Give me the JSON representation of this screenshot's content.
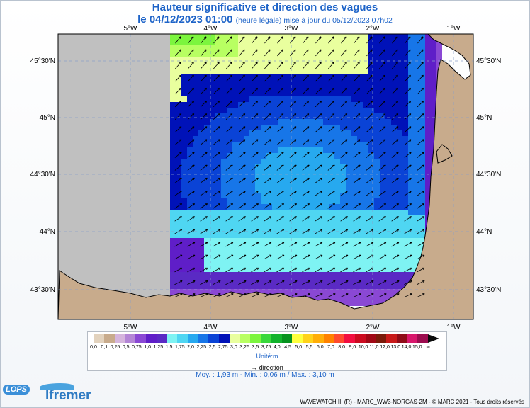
{
  "title": "Hauteur significative et direction des vagues",
  "subtitle": {
    "date": "le 04/12/2023 01:00",
    "note": "(heure légale) mise à jour du 05/12/2023 07h02"
  },
  "map": {
    "lon_labels": [
      "5°W",
      "4°W",
      "3°W",
      "2°W",
      "1°W"
    ],
    "lat_labels": [
      "45°30'N",
      "45°N",
      "44°30'N",
      "44°N",
      "43°30'N"
    ],
    "colors": {
      "land": "#c8ab8c",
      "nodata": "#c0c0c0",
      "coast": "#000000"
    }
  },
  "legend": {
    "ticks": [
      "0,0",
      "0,1",
      "0,25",
      "0,5",
      "0,75",
      "1,0",
      "1,25",
      "1,5",
      "1,75",
      "2,0",
      "2,25",
      "2,5",
      "2,75",
      "3,0",
      "3,25",
      "3,5",
      "3,75",
      "4,0",
      "4,5",
      "5,0",
      "5,5",
      "6,0",
      "7,0",
      "8,0",
      "9,0",
      "10,0",
      "11,0",
      "12,0",
      "13,0",
      "14,0",
      "15,0",
      "∞"
    ],
    "colors": [
      "#e2d2bd",
      "#c8ab8c",
      "#d5b5dd",
      "#b486d6",
      "#8a48d4",
      "#5f1ec8",
      "#5a2ac4",
      "#7ef3f3",
      "#4fd6f2",
      "#27a9ef",
      "#1776e8",
      "#0a43d6",
      "#0012b8",
      "#e9ff9e",
      "#b8ff62",
      "#7cf53e",
      "#3ad83c",
      "#12b32c",
      "#06921e",
      "#feff3d",
      "#ffd21a",
      "#ffae08",
      "#ff8200",
      "#ff4b2e",
      "#f20f40",
      "#cc0b20",
      "#a00816",
      "#7b1b0a",
      "#c81a1a",
      "#8f0c18",
      "#d8176c",
      "#9c0d4f"
    ],
    "unit": "Unité:m",
    "direction_label": "direction"
  },
  "stats": "Moy. : 1,93 m  -  Min. : 0,06 m / Max. : 3,10 m",
  "credit": "WAVEWATCH III (R) - MARC_WW3-NORGAS-2M - © MARC 2021 - Tous droits réservés",
  "logos": {
    "lops": "LOPS",
    "ifremer": "Ifremer"
  }
}
